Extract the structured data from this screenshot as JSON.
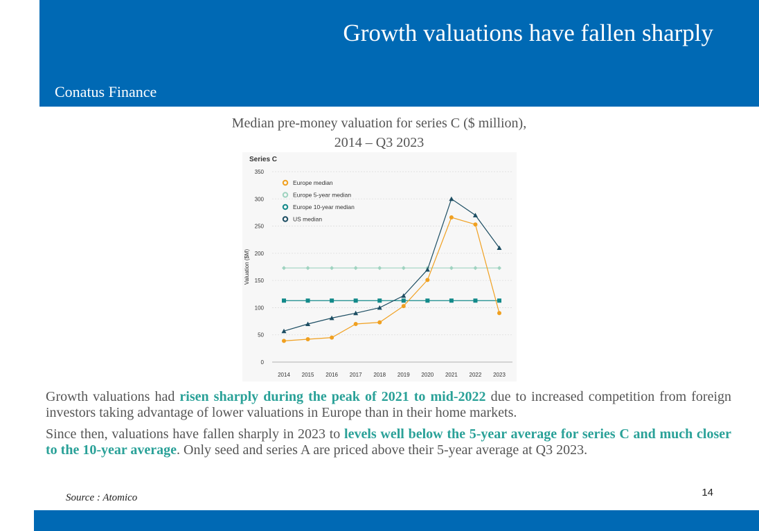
{
  "header": {
    "title": "Growth valuations have fallen sharply",
    "company": "Conatus Finance"
  },
  "caption": {
    "line1": "Median pre-money valuation for series C ($ million),",
    "line2": "2014 – Q3 2023"
  },
  "chart_data": {
    "type": "line",
    "title": "Series C",
    "ylabel": "Valuation ($M)",
    "xlabel": "",
    "categories": [
      "2014",
      "2015",
      "2016",
      "2017",
      "2018",
      "2019",
      "2020",
      "2021",
      "2022",
      "2023"
    ],
    "ylim": [
      0,
      350
    ],
    "yticks": [
      0,
      50,
      100,
      150,
      200,
      250,
      300,
      350
    ],
    "grid": "horizontal dashed",
    "legend_position": "top-left",
    "series": [
      {
        "name": "Europe median",
        "color": "#f0a020",
        "marker": "circle",
        "values": [
          39,
          42,
          45,
          70,
          73,
          103,
          151,
          266,
          253,
          90
        ]
      },
      {
        "name": "Europe 5-year median",
        "color": "#9fd3c0",
        "marker": "diamond",
        "values": [
          173,
          173,
          173,
          173,
          173,
          173,
          173,
          173,
          173,
          173
        ]
      },
      {
        "name": "Europe 10-year median",
        "color": "#138a8a",
        "marker": "square",
        "values": [
          113,
          113,
          113,
          113,
          113,
          113,
          113,
          113,
          113,
          113
        ]
      },
      {
        "name": "US median",
        "color": "#1d4e63",
        "marker": "triangle",
        "values": [
          57,
          70,
          81,
          90,
          100,
          122,
          170,
          300,
          270,
          210
        ]
      }
    ]
  },
  "body": {
    "p1_a": "Growth valuations had ",
    "p1_hl": "risen sharply during the peak of 2021 to mid-2022",
    "p1_b": " due to increased competition from foreign investors taking advantage of lower valuations in Europe than in their home markets.",
    "p2_a": "Since then, valuations have fallen sharply in 2023 to ",
    "p2_hl": "levels well below the 5-year average for series C and much closer to the 10-year average",
    "p2_b": ". Only seed and series A are priced above their 5-year average at Q3 2023."
  },
  "footer": {
    "source": "Source : Atomico",
    "page_number": "14"
  }
}
